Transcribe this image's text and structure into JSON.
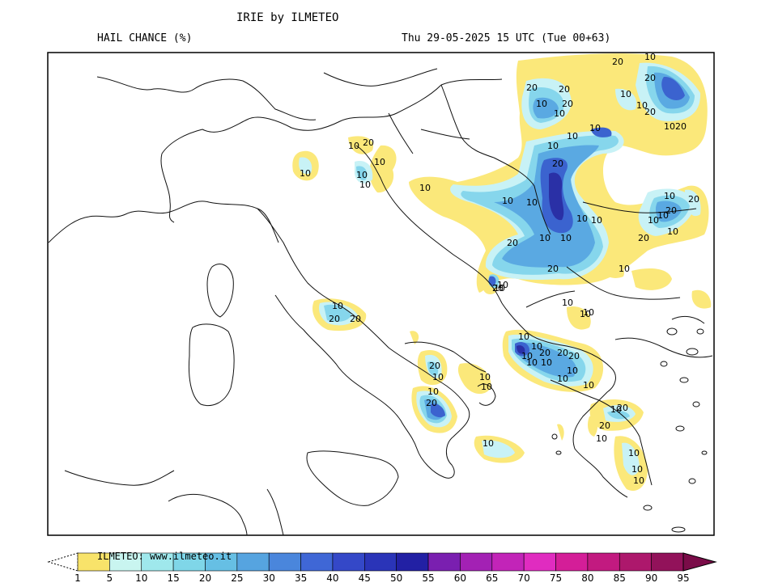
{
  "header": {
    "title": "IRIE by ILMETEO",
    "product": "HAIL CHANCE (%)",
    "valid_time": "Thu 29-05-2025 15 UTC (Tue 00+63)"
  },
  "watermark": "ILMETEO: www.ilmeteo.it",
  "colorbar": {
    "ticks": [
      "1",
      "5",
      "10",
      "15",
      "20",
      "25",
      "30",
      "35",
      "40",
      "45",
      "50",
      "55",
      "60",
      "65",
      "70",
      "75",
      "80",
      "85",
      "90",
      "95"
    ],
    "colors": [
      "#f8e36a",
      "#c9f5f0",
      "#9fe8ec",
      "#7fd6e8",
      "#66bfe4",
      "#56a4e0",
      "#4a86dc",
      "#3f67d6",
      "#3448c8",
      "#2a34b8",
      "#2220a4",
      "#7a1fb0",
      "#a321b4",
      "#c224b8",
      "#e02cc0",
      "#d41e98",
      "#c21a80",
      "#ad186c",
      "#92125a",
      "#7a0c48"
    ]
  },
  "map": {
    "contour_labels": [
      "10",
      "10",
      "20",
      "10",
      "10",
      "10",
      "10",
      "10",
      "20",
      "20",
      "20",
      "10",
      "10",
      "20",
      "20",
      "20",
      "10",
      "10",
      "20",
      "10",
      "10",
      "20",
      "20",
      "10",
      "10",
      "20",
      "10",
      "10",
      "10",
      "10",
      "10",
      "10",
      "20",
      "10",
      "20",
      "20",
      "10",
      "10",
      "10",
      "20",
      "20",
      "10",
      "10",
      "20",
      "10",
      "10",
      "20",
      "20",
      "10",
      "10",
      "20",
      "10",
      "10",
      "20",
      "10",
      "10",
      "20",
      "10",
      "10",
      "10",
      "10",
      "10",
      "10",
      "10",
      "10",
      "20",
      "10",
      "10",
      "10",
      "10",
      "10",
      "10",
      "20",
      "10"
    ],
    "colors": {
      "yellow": "#fbe87a",
      "light": "#c8f2f6",
      "cyan": "#86d6ec",
      "mid": "#5aa9e2",
      "dark": "#3b63cf",
      "darkest": "#2a30a6",
      "outline": "#111111"
    }
  }
}
